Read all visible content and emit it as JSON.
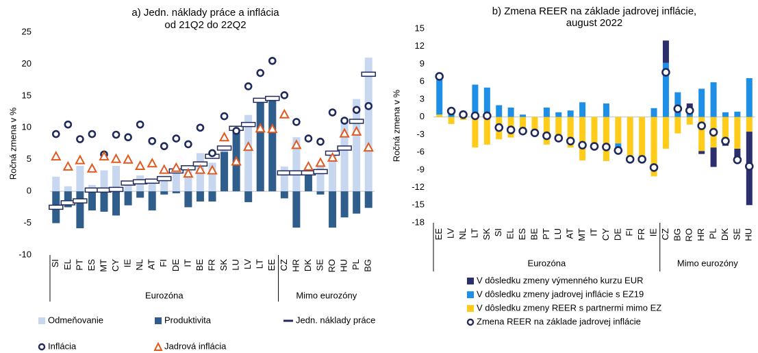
{
  "chart_data": [
    {
      "type": "bar",
      "title": [
        "a) Jedn. náklady práce a inflácia",
        "od 21Q2 do 22Q2"
      ],
      "ylabel": "Ročná zmena v %",
      "categories": [
        "SI",
        "EL",
        "PT",
        "ES",
        "MT",
        "CY",
        "IE",
        "NL",
        "AT",
        "FI",
        "DE",
        "IT",
        "BE",
        "FR",
        "SK",
        "LU",
        "LV",
        "LT",
        "EE",
        "CZ",
        "HR",
        "DK",
        "SE",
        "RO",
        "HU",
        "PL",
        "BG"
      ],
      "groups": [
        {
          "name": "Eurozóna",
          "count": 19
        },
        {
          "name": "Mimo eurozóny",
          "count": 8
        }
      ],
      "ylim": [
        -10,
        25
      ],
      "yticks": [
        -10,
        -5,
        0,
        5,
        10,
        15,
        20,
        25
      ],
      "stacked": false,
      "series": [
        {
          "name": "Odmeňovanie",
          "kind": "bar",
          "color": "#c6d7ef",
          "values": [
            2.3,
            0.8,
            4,
            1,
            3.3,
            4,
            1.5,
            2.5,
            2,
            1.7,
            3.5,
            3.2,
            6,
            4.5,
            7,
            10,
            12,
            14,
            14.5,
            3.9,
            8.5,
            3,
            4,
            6.3,
            11.5,
            14.5,
            21
          ]
        },
        {
          "name": "Produktivita",
          "kind": "bar",
          "color": "#2f5d8c",
          "values": [
            -5,
            -2.5,
            -5.8,
            -3,
            -3.2,
            -3.8,
            -2.2,
            -1,
            -3,
            -0.5,
            -0.3,
            -2.5,
            -1.6,
            -1.6,
            6.2,
            9.3,
            -1.7,
            14,
            14.5,
            -1.1,
            -5.7,
            2.5,
            -0.5,
            -5.7,
            -4.1,
            -3.5,
            -2.6
          ]
        },
        {
          "name": "Jedn. náklady práce",
          "kind": "dash",
          "color": "#1f2a5a",
          "values": [
            -2.5,
            -1.8,
            -1.5,
            0.2,
            0.2,
            0.3,
            1.3,
            1.5,
            1.6,
            2,
            3.2,
            3.7,
            4.3,
            5.5,
            6.8,
            9.9,
            10.5,
            14.3,
            14.6,
            2.9,
            2.9,
            2.9,
            3.1,
            6,
            6.8,
            11,
            18.4
          ]
        },
        {
          "name": "Inflácia",
          "kind": "circle",
          "color": "#1f2a5a",
          "values": [
            9,
            10.5,
            8.2,
            9,
            5.8,
            8.9,
            8.5,
            10.5,
            7.9,
            7.1,
            8.3,
            7.4,
            10,
            6,
            11.8,
            9.5,
            16.5,
            18.6,
            20.5,
            15.1,
            10.9,
            8.3,
            7.8,
            12.4,
            11.1,
            12.8,
            13.4
          ]
        },
        {
          "name": "Jadrová inflácia",
          "kind": "triangle",
          "color": "#e0591f",
          "values": [
            5.5,
            3.9,
            4.9,
            3.6,
            5.5,
            5.1,
            5,
            4,
            4.4,
            3.4,
            3.7,
            2.8,
            3.4,
            3.3,
            8.5,
            4.7,
            7,
            9.9,
            9.8,
            12.1,
            7.3,
            3.9,
            4.5,
            5.3,
            9.1,
            9.4,
            6.9
          ]
        }
      ]
    },
    {
      "type": "bar",
      "title": [
        "b) Zmena REER na základe jadrovej inflácie,",
        "august 2022"
      ],
      "ylabel": "Ročná zmena v %",
      "categories": [
        "EE",
        "LV",
        "NL",
        "LT",
        "SK",
        "SI",
        "EL",
        "ES",
        "BE",
        "PT",
        "LU",
        "AT",
        "MT",
        "IT",
        "CY",
        "DE",
        "FI",
        "FR",
        "IE",
        "CZ",
        "BG",
        "RO",
        "HR",
        "PL",
        "DK",
        "SE",
        "HU"
      ],
      "groups": [
        {
          "name": "Eurozóna",
          "count": 19
        },
        {
          "name": "Mimo eurozóny",
          "count": 8
        }
      ],
      "ylim": [
        -18,
        15
      ],
      "yticks": [
        -18,
        -15,
        -12,
        -9,
        -6,
        -3,
        0,
        3,
        6,
        9,
        12,
        15
      ],
      "stacked": true,
      "series": [
        {
          "name": "V dôsledku zmeny výmenného kurzu EUR",
          "kind": "bar",
          "color": "#2b2f6e",
          "values": [
            0,
            0,
            0,
            0,
            0,
            0,
            0,
            0,
            0,
            0,
            0,
            0,
            0,
            0,
            0,
            0,
            0,
            0,
            0,
            3.8,
            0,
            1.5,
            -0.5,
            -3.3,
            -0.5,
            -1.9,
            -12.5
          ]
        },
        {
          "name": "V dôsledku zmeny jadrovej inflácie s EZ19",
          "kind": "bar",
          "color": "#1e8fe6",
          "values": [
            6.5,
            1.3,
            0.3,
            5.5,
            5,
            2,
            1.6,
            0.4,
            0,
            1.6,
            0.8,
            1.1,
            2.5,
            0,
            2.3,
            -1,
            0,
            0,
            1.5,
            9.2,
            4.2,
            0.8,
            4.8,
            5.9,
            0.8,
            0.9,
            6.6
          ]
        },
        {
          "name": "V dôsledku zmeny REER s partnermi mimo EZ",
          "kind": "bar",
          "color": "#ffcc1a",
          "values": [
            0.4,
            -1.2,
            -0.5,
            -5.2,
            -4.7,
            -3.8,
            -3.5,
            -2.8,
            -2.8,
            -4.7,
            -4.2,
            -5.2,
            -7.4,
            -5,
            -7.5,
            -4.5,
            -7.3,
            -7.1,
            -10.1,
            -5.4,
            -2.8,
            -1.3,
            -5.8,
            -5.2,
            -4.4,
            -5.4,
            -2.5
          ]
        },
        {
          "name": "Zmena REER na základe jadrovej inflácie",
          "kind": "circle",
          "color": "#1f2a5a",
          "values": [
            6.9,
            1,
            0.4,
            0.2,
            0.2,
            -1.8,
            -2.2,
            -2.4,
            -2.7,
            -3.2,
            -3.6,
            -4.1,
            -4.8,
            -5,
            -5.1,
            -5.7,
            -7.2,
            -7.2,
            -8.6,
            7.6,
            1.4,
            1.1,
            -1.5,
            -2.6,
            -4.1,
            -7.3,
            -8.4
          ]
        }
      ]
    }
  ]
}
